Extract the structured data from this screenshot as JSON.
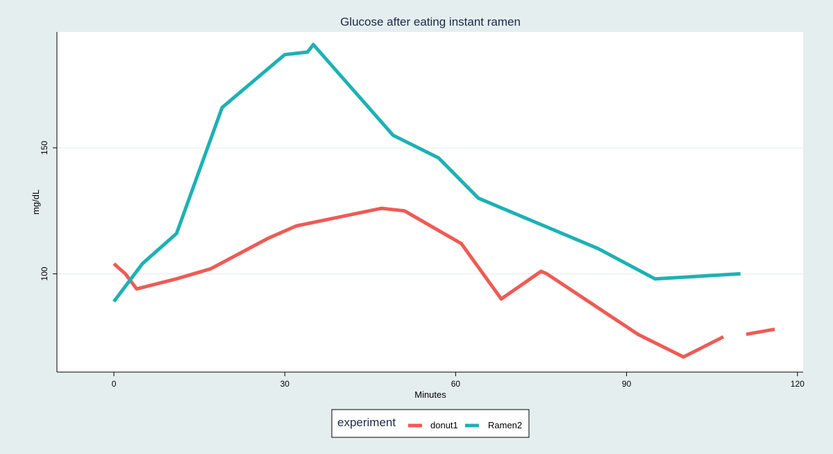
{
  "chart_data": {
    "type": "line",
    "title": "Glucose after eating instant ramen",
    "xlabel": "Minutes",
    "ylabel": "mg/dL",
    "xlim": [
      -10,
      121
    ],
    "ylim": [
      61,
      196
    ],
    "xticks": [
      0,
      30,
      60,
      90,
      120
    ],
    "yticks": [
      100,
      150
    ],
    "grid": "horizontal",
    "legend": {
      "title": "experiment",
      "placement": "bottom-center"
    },
    "series": [
      {
        "name": "donut1",
        "color": "#ee5b55",
        "points": [
          [
            0,
            104
          ],
          [
            2,
            100
          ],
          [
            4,
            94
          ],
          [
            11,
            98
          ],
          [
            17,
            102
          ],
          [
            27,
            114
          ],
          [
            32,
            119
          ],
          [
            47,
            126
          ],
          [
            51,
            125
          ],
          [
            61,
            112
          ],
          [
            68,
            90
          ],
          [
            75,
            101
          ],
          [
            76,
            100
          ],
          [
            84,
            88
          ],
          [
            92,
            76
          ],
          [
            100,
            67
          ],
          [
            107,
            75
          ]
        ]
      },
      {
        "name": "donut1",
        "color": "#ee5b55",
        "points": [
          [
            111,
            76
          ],
          [
            116,
            78
          ]
        ]
      },
      {
        "name": "Ramen2",
        "color": "#1db1b4",
        "points": [
          [
            0,
            89
          ],
          [
            5,
            104
          ],
          [
            11,
            116
          ],
          [
            19,
            166
          ],
          [
            30,
            187
          ],
          [
            34,
            188
          ],
          [
            35,
            191
          ],
          [
            49,
            155
          ],
          [
            57,
            146
          ],
          [
            64,
            130
          ],
          [
            85,
            110
          ],
          [
            95,
            98
          ],
          [
            110,
            100
          ]
        ]
      }
    ]
  }
}
